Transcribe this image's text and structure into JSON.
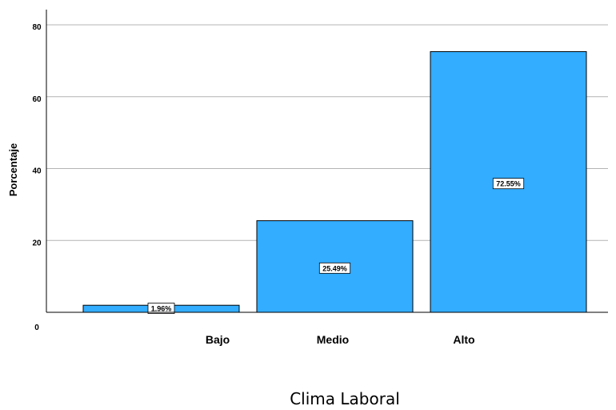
{
  "chart_data": {
    "type": "bar",
    "title": "",
    "xlabel": "Clima Laboral",
    "ylabel": "Porcentaje",
    "categories": [
      "Bajo",
      "Medio",
      "Alto"
    ],
    "values": [
      1.96,
      25.49,
      72.55
    ],
    "data_labels": [
      "1.96%",
      "25.49%",
      "72.55%"
    ],
    "ylim": [
      0,
      80
    ],
    "y_ticks": [
      0,
      20,
      40,
      60,
      80
    ],
    "grid": true,
    "legend": "none",
    "bar_color": "#33adff",
    "bar_stroke": "#000000",
    "grid_color": "#b4b4b4"
  }
}
